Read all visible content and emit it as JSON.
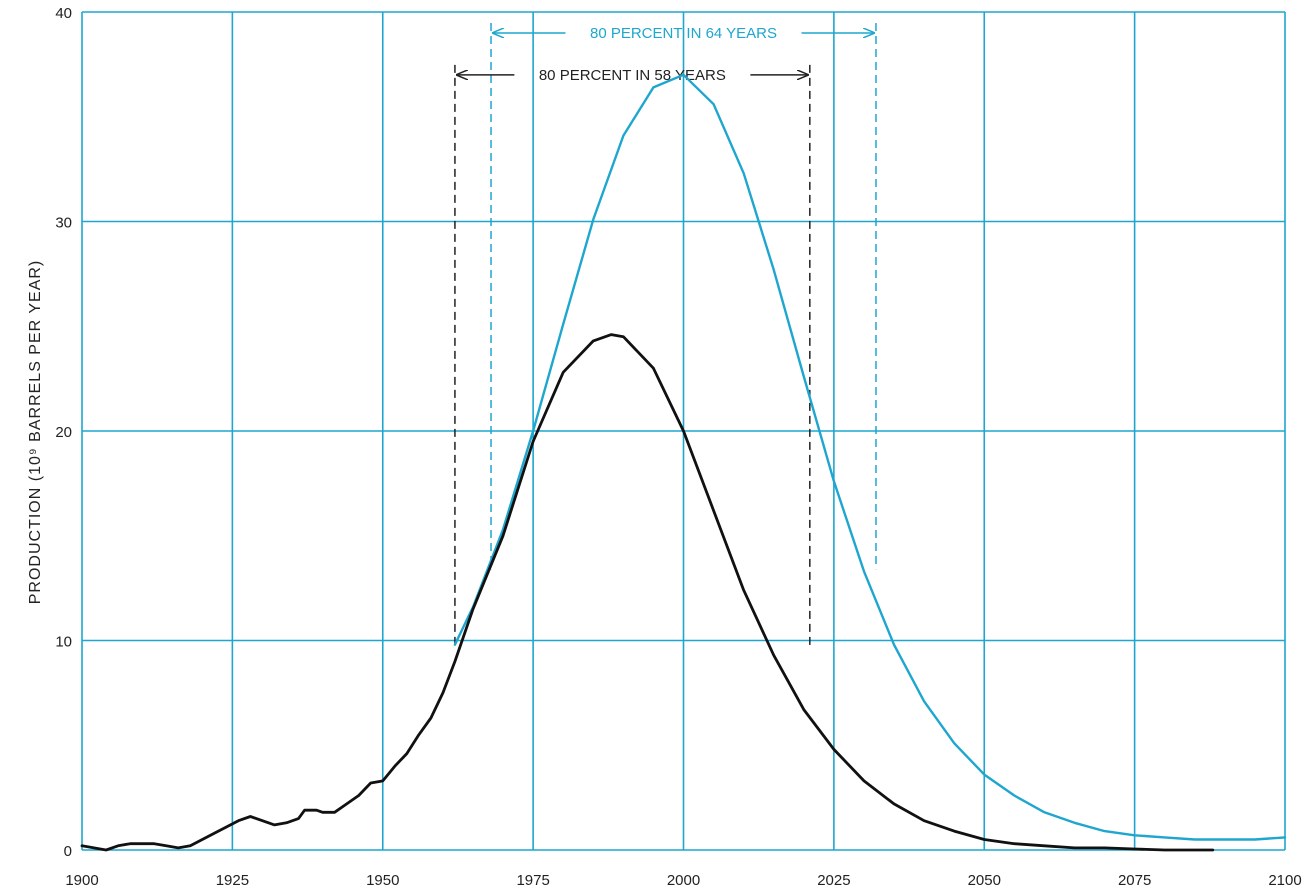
{
  "chart_data": {
    "type": "line",
    "title": "",
    "ylabel": "PRODUCTION (10⁹ BARRELS PER YEAR)",
    "xlabel": "",
    "xlim": [
      1900,
      2100
    ],
    "ylim": [
      0,
      40
    ],
    "grid": true,
    "x_ticks": [
      {
        "value": 1900,
        "label": "1900"
      },
      {
        "value": 1925,
        "label": "1925"
      },
      {
        "value": 1950,
        "label": "1950"
      },
      {
        "value": 1975,
        "label": "1975"
      },
      {
        "value": 2000,
        "label": "2000"
      },
      {
        "value": 2025,
        "label": "2025"
      },
      {
        "value": 2050,
        "label": "2050"
      },
      {
        "value": 2075,
        "label": "2075"
      },
      {
        "value": 2100,
        "label": "2100"
      }
    ],
    "y_ticks": [
      {
        "value": 0,
        "label": "0"
      },
      {
        "value": 10,
        "label": "10"
      },
      {
        "value": 20,
        "label": "20"
      },
      {
        "value": 30,
        "label": "30"
      },
      {
        "value": 40,
        "label": "40"
      }
    ],
    "series": [
      {
        "color": "#1ea6cf",
        "points": [
          [
            1962,
            9.8
          ],
          [
            1965,
            11.6
          ],
          [
            1970,
            15.3
          ],
          [
            1975,
            20.0
          ],
          [
            1980,
            25.1
          ],
          [
            1985,
            30.1
          ],
          [
            1990,
            34.1
          ],
          [
            1995,
            36.4
          ],
          [
            2000,
            37.0
          ],
          [
            2005,
            35.6
          ],
          [
            2010,
            32.3
          ],
          [
            2015,
            27.7
          ],
          [
            2020,
            22.6
          ],
          [
            2025,
            17.6
          ],
          [
            2030,
            13.3
          ],
          [
            2035,
            9.8
          ],
          [
            2040,
            7.1
          ],
          [
            2045,
            5.1
          ],
          [
            2050,
            3.6
          ],
          [
            2055,
            2.6
          ],
          [
            2060,
            1.8
          ],
          [
            2065,
            1.3
          ],
          [
            2070,
            0.9
          ],
          [
            2075,
            0.7
          ],
          [
            2080,
            0.6
          ],
          [
            2085,
            0.5
          ],
          [
            2090,
            0.5
          ],
          [
            2095,
            0.5
          ],
          [
            2100,
            0.6
          ]
        ]
      },
      {
        "color": "#111111",
        "points": [
          [
            1900,
            0.2
          ],
          [
            1902,
            0.1
          ],
          [
            1904,
            0.0
          ],
          [
            1906,
            0.2
          ],
          [
            1908,
            0.3
          ],
          [
            1910,
            0.3
          ],
          [
            1912,
            0.3
          ],
          [
            1914,
            0.2
          ],
          [
            1916,
            0.1
          ],
          [
            1918,
            0.2
          ],
          [
            1920,
            0.5
          ],
          [
            1922,
            0.8
          ],
          [
            1924,
            1.1
          ],
          [
            1926,
            1.4
          ],
          [
            1928,
            1.6
          ],
          [
            1930,
            1.4
          ],
          [
            1932,
            1.2
          ],
          [
            1934,
            1.3
          ],
          [
            1936,
            1.5
          ],
          [
            1937,
            1.9
          ],
          [
            1939,
            1.9
          ],
          [
            1940,
            1.8
          ],
          [
            1942,
            1.8
          ],
          [
            1944,
            2.2
          ],
          [
            1946,
            2.6
          ],
          [
            1948,
            3.2
          ],
          [
            1950,
            3.3
          ],
          [
            1952,
            4.0
          ],
          [
            1954,
            4.6
          ],
          [
            1956,
            5.5
          ],
          [
            1958,
            6.3
          ],
          [
            1960,
            7.5
          ],
          [
            1962,
            9.0
          ],
          [
            1965,
            11.5
          ],
          [
            1970,
            15.0
          ],
          [
            1975,
            19.5
          ],
          [
            1980,
            22.8
          ],
          [
            1985,
            24.3
          ],
          [
            1988,
            24.6
          ],
          [
            1990,
            24.5
          ],
          [
            1995,
            23.0
          ],
          [
            2000,
            20.0
          ],
          [
            2005,
            16.2
          ],
          [
            2010,
            12.4
          ],
          [
            2015,
            9.3
          ],
          [
            2020,
            6.7
          ],
          [
            2025,
            4.8
          ],
          [
            2030,
            3.3
          ],
          [
            2035,
            2.2
          ],
          [
            2040,
            1.4
          ],
          [
            2045,
            0.9
          ],
          [
            2050,
            0.5
          ],
          [
            2055,
            0.3
          ],
          [
            2060,
            0.2
          ],
          [
            2065,
            0.1
          ],
          [
            2070,
            0.1
          ],
          [
            2075,
            0.05
          ],
          [
            2080,
            0.0
          ],
          [
            2085,
            0.0
          ],
          [
            2088,
            0.0
          ]
        ]
      }
    ],
    "annotations": [
      {
        "text": "80 PERCENT IN 64 YEARS",
        "x_start": 1968,
        "x_end": 2032,
        "y": 39.0,
        "color": "#1ea6cf",
        "marker_bottom": 13.4
      },
      {
        "text": "80 PERCENT IN 58 YEARS",
        "x_start": 1962,
        "x_end": 2021,
        "y": 37.0,
        "color": "#222222",
        "marker_bottom": 9.6
      }
    ]
  }
}
